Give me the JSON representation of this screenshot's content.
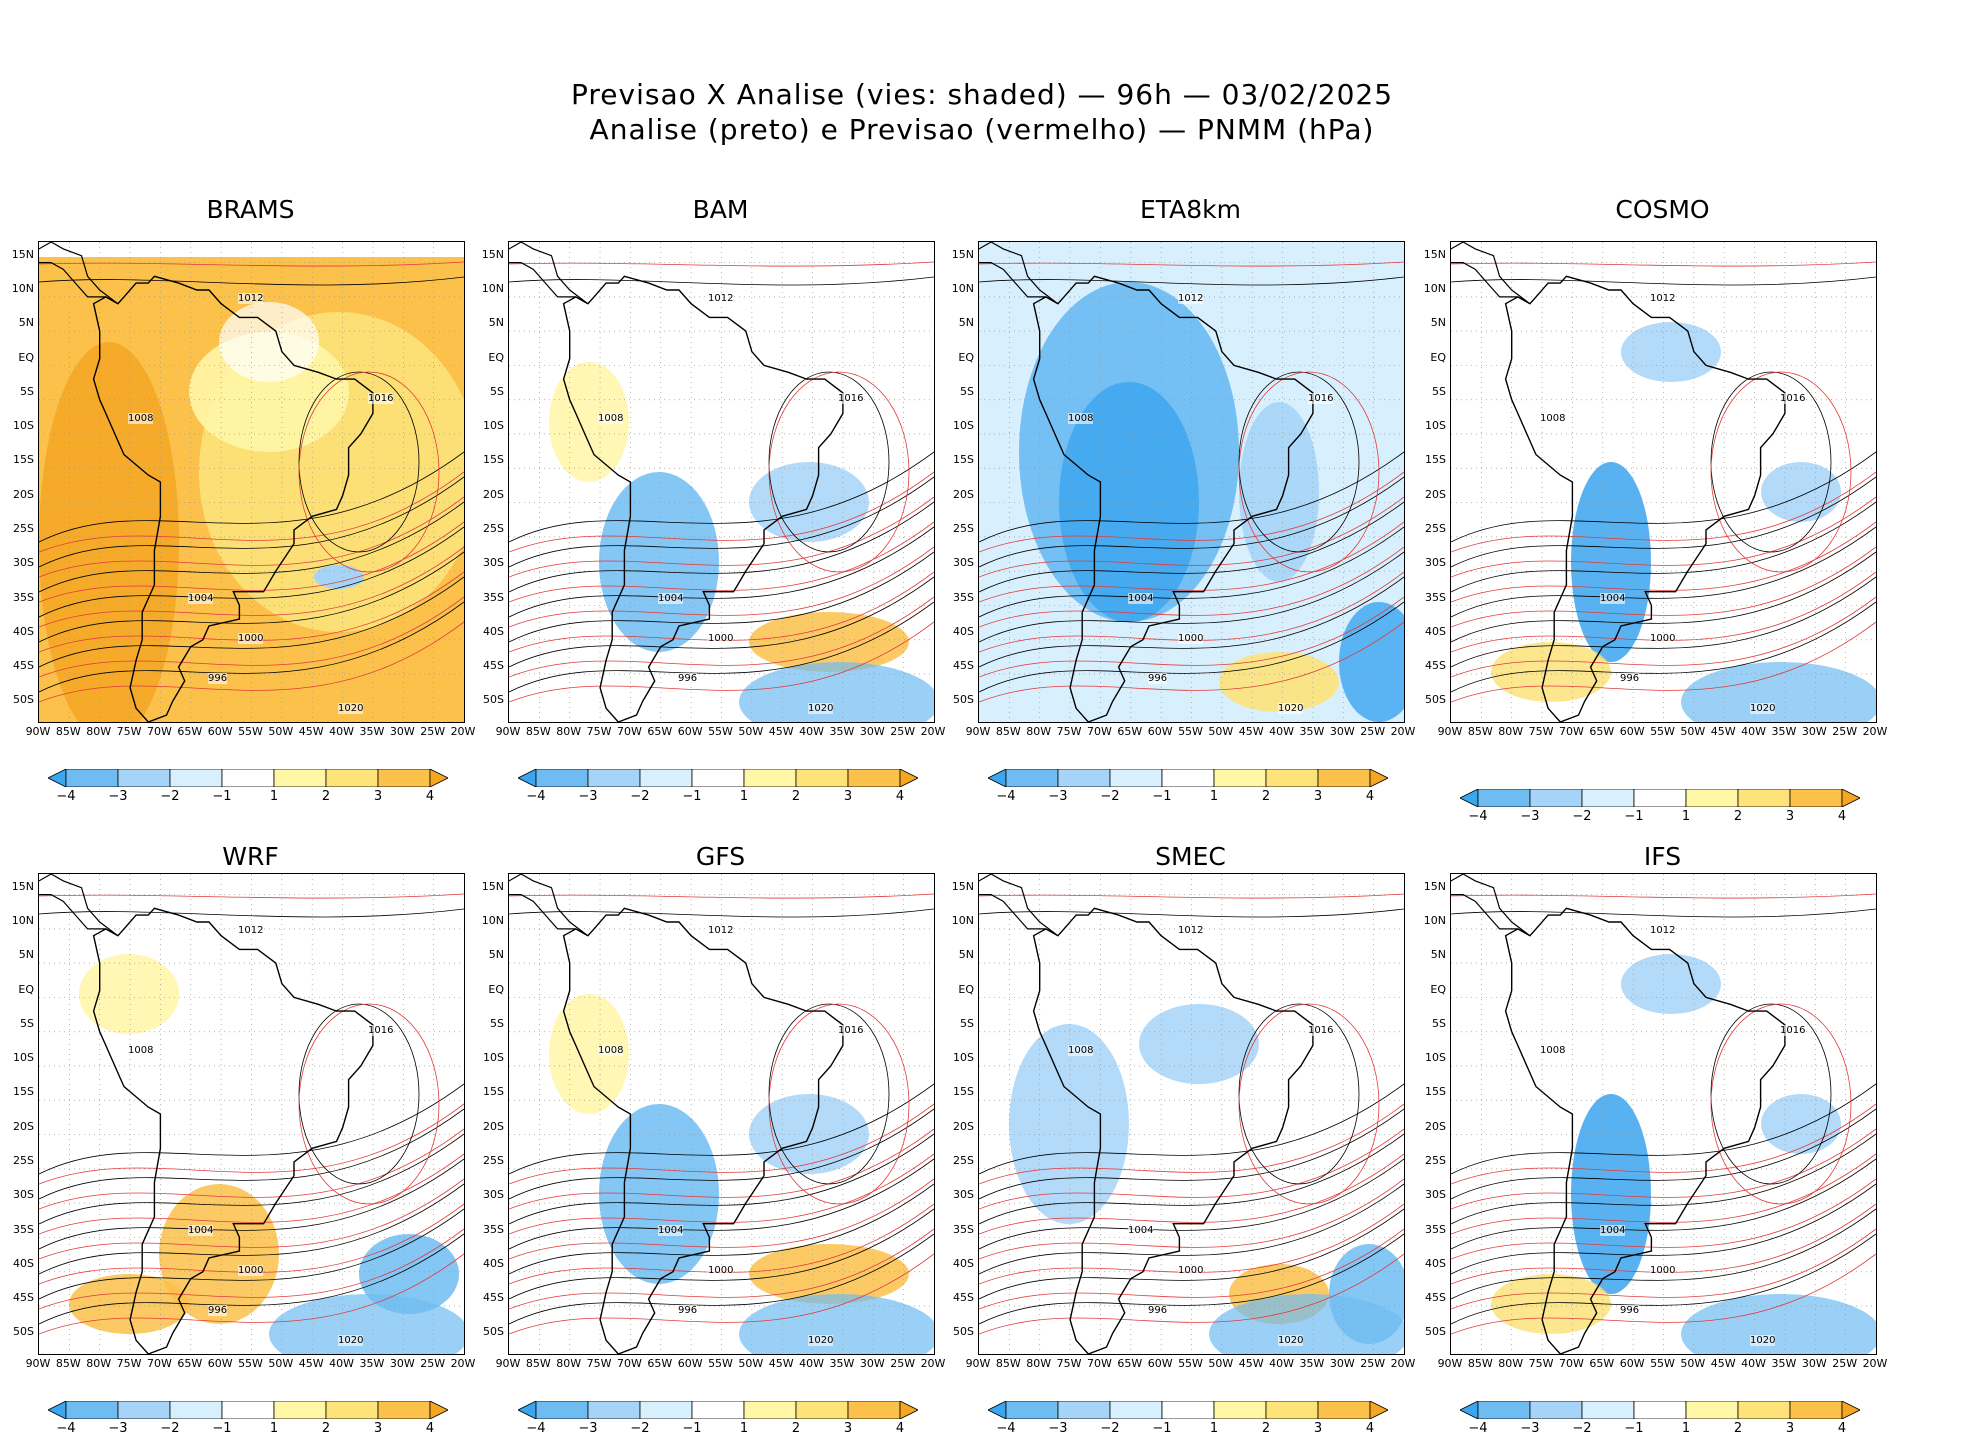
{
  "header": {
    "line1": "Previsao X Analise (vies: shaded) — 96h — 03/02/2025",
    "line2": "Analise (preto) e Previsao (vermelho) — PNMM (hPa)"
  },
  "lat_labels": [
    "15N",
    "10N",
    "5N",
    "EQ",
    "5S",
    "10S",
    "15S",
    "20S",
    "25S",
    "30S",
    "35S",
    "40S",
    "45S",
    "50S"
  ],
  "lon_labels": [
    "90W",
    "85W",
    "80W",
    "75W",
    "70W",
    "65W",
    "60W",
    "55W",
    "50W",
    "45W",
    "40W",
    "35W",
    "30W",
    "25W",
    "20W"
  ],
  "colorbar": {
    "labels": [
      "−4",
      "−3",
      "−2",
      "−1",
      "1",
      "2",
      "3",
      "4"
    ],
    "colors": [
      "#3ba5f0",
      "#6fbcf2",
      "#a6d4f8",
      "#d8f0fd",
      "#ffffff",
      "#fff6a6",
      "#fde37a",
      "#fbc14a",
      "#f5a623"
    ]
  },
  "isobar_labels": [
    "996",
    "1000",
    "1004",
    "1008",
    "1012",
    "1016",
    "1020"
  ],
  "panels": [
    {
      "name": "BRAMS",
      "bias": "warm"
    },
    {
      "name": "BAM",
      "bias": "mixed"
    },
    {
      "name": "ETA8km",
      "bias": "cold"
    },
    {
      "name": "COSMO",
      "bias": "mixed"
    },
    {
      "name": "WRF",
      "bias": "mixed"
    },
    {
      "name": "GFS",
      "bias": "mixed"
    },
    {
      "name": "SMEC",
      "bias": "mixed"
    },
    {
      "name": "IFS",
      "bias": "mixed"
    }
  ]
}
